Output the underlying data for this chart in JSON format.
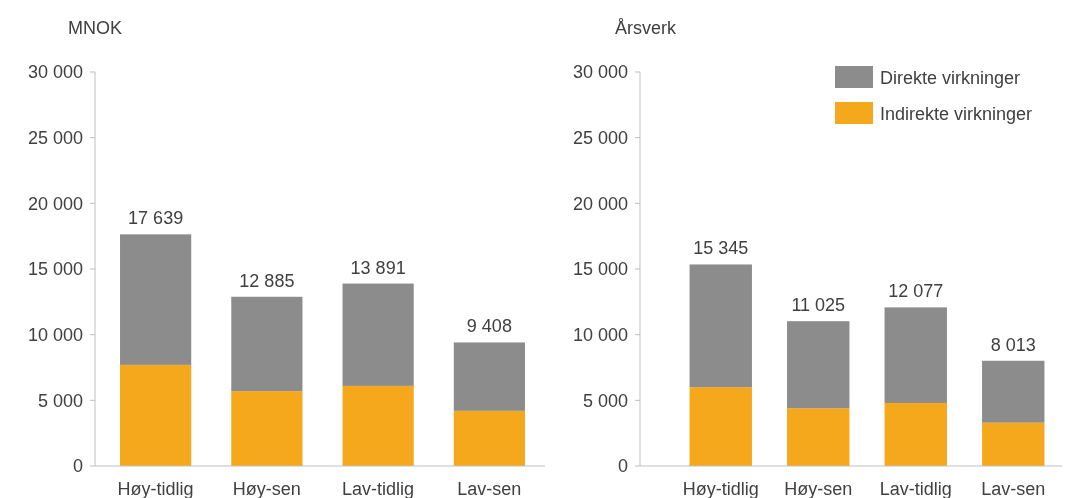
{
  "chart_data": [
    {
      "type": "bar",
      "stacked": true,
      "ylabel": "MNOK",
      "categories": [
        "Høy-tidlig",
        "Høy-sen",
        "Lav-tidlig",
        "Lav-sen"
      ],
      "series": [
        {
          "color": "#f5a81c",
          "values": [
            7700,
            5700,
            6100,
            4200
          ]
        },
        {
          "color": "#8c8c8c",
          "values": [
            9939,
            7185,
            7791,
            5208
          ]
        }
      ],
      "totals": [
        "17 639",
        "12 885",
        "13 891",
        "9 408"
      ],
      "ylim": [
        0,
        30000
      ],
      "yticks": [
        {
          "value": 0,
          "label": "0"
        },
        {
          "value": 5000,
          "label": "5 000"
        },
        {
          "value": 10000,
          "label": "10 000"
        },
        {
          "value": 15000,
          "label": "15 000"
        },
        {
          "value": 20000,
          "label": "20 000"
        },
        {
          "value": 25000,
          "label": "25 000"
        },
        {
          "value": 30000,
          "label": "30 000"
        }
      ],
      "legend": false
    },
    {
      "type": "bar",
      "stacked": true,
      "ylabel": "Årsverk",
      "categories": [
        "Høy-tidlig",
        "Høy-sen",
        "Lav-tidlig",
        "Lav-sen"
      ],
      "series": [
        {
          "name": "Indirekte virkninger",
          "color": "#f5a81c",
          "values": [
            6000,
            4400,
            4800,
            3300
          ]
        },
        {
          "name": "Direkte virkninger",
          "color": "#8c8c8c",
          "values": [
            9345,
            6625,
            7277,
            4713
          ]
        }
      ],
      "totals": [
        "15 345",
        "11 025",
        "12 077",
        "8 013"
      ],
      "ylim": [
        0,
        30000
      ],
      "yticks": [
        {
          "value": 0,
          "label": "0"
        },
        {
          "value": 5000,
          "label": "5 000"
        },
        {
          "value": 10000,
          "label": "10 000"
        },
        {
          "value": 15000,
          "label": "15 000"
        },
        {
          "value": 20000,
          "label": "20 000"
        },
        {
          "value": 25000,
          "label": "25 000"
        },
        {
          "value": 30000,
          "label": "30 000"
        }
      ],
      "legend": "top right"
    }
  ]
}
